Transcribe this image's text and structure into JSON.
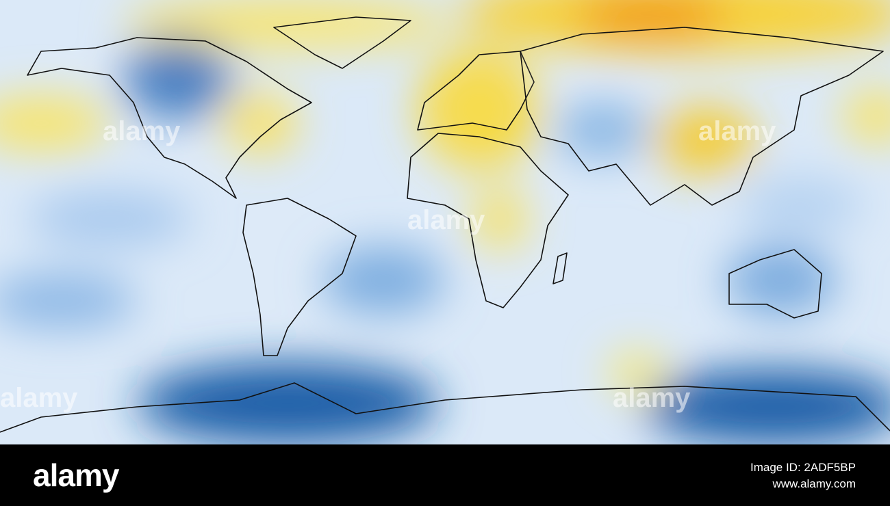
{
  "watermark": "alamy",
  "footer": {
    "logo": "alamy",
    "image_id": "Image ID: 2ADF5BP",
    "url": "www.alamy.com"
  }
}
